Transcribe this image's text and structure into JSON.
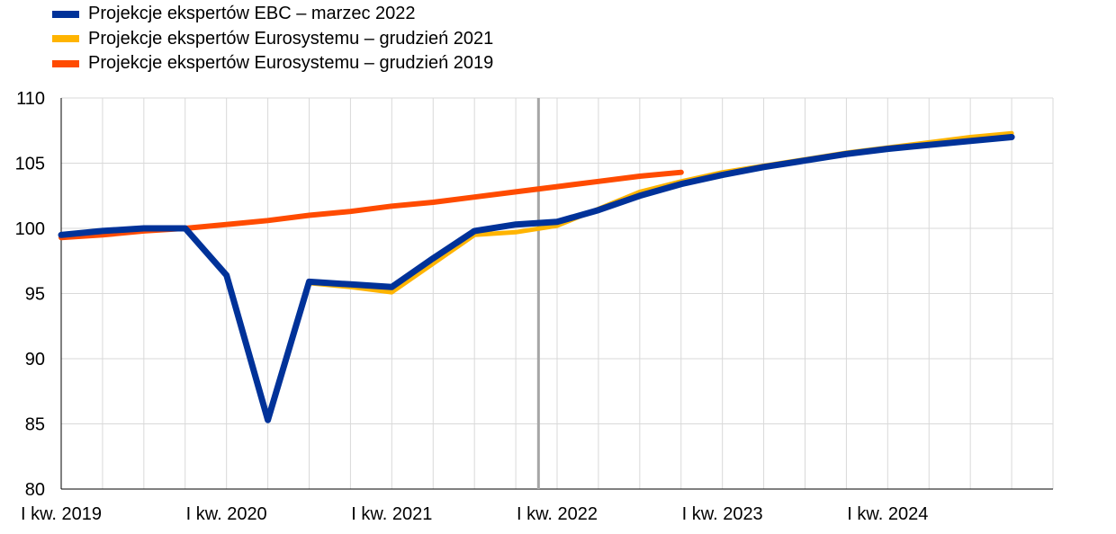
{
  "chart_data": {
    "type": "line",
    "title": "",
    "xlabel": "",
    "ylabel": "",
    "ylim": [
      80,
      110
    ],
    "yticks": [
      80,
      85,
      90,
      95,
      100,
      105,
      110
    ],
    "grid": true,
    "legend": "top-left",
    "x": [
      "2019Q1",
      "2019Q2",
      "2019Q3",
      "2019Q4",
      "2020Q1",
      "2020Q2",
      "2020Q3",
      "2020Q4",
      "2021Q1",
      "2021Q2",
      "2021Q3",
      "2021Q4",
      "2022Q1",
      "2022Q2",
      "2022Q3",
      "2022Q4",
      "2023Q1",
      "2023Q2",
      "2023Q3",
      "2023Q4",
      "2024Q1",
      "2024Q2",
      "2024Q3",
      "2024Q4"
    ],
    "xtick_labels": [
      {
        "x": "2019Q1",
        "label": "I kw. 2019"
      },
      {
        "x": "2020Q1",
        "label": "I kw. 2020"
      },
      {
        "x": "2021Q1",
        "label": "I kw. 2021"
      },
      {
        "x": "2022Q1",
        "label": "I kw. 2022"
      },
      {
        "x": "2023Q1",
        "label": "I kw. 2023"
      },
      {
        "x": "2024Q1",
        "label": "I kw. 2024"
      }
    ],
    "vertical_marker": {
      "between": [
        "2021Q4",
        "2022Q1"
      ],
      "color": "#a6a6a6"
    },
    "series": [
      {
        "name": "Projekcje ekspertów Eurosystemu – grudzień 2019",
        "color": "#ff4b00",
        "values": [
          99.3,
          99.5,
          99.8,
          100.0,
          100.3,
          100.6,
          101.0,
          101.3,
          101.7,
          102.0,
          102.4,
          102.8,
          103.2,
          103.6,
          104.0,
          104.3,
          null,
          null,
          null,
          null,
          null,
          null,
          null,
          null
        ]
      },
      {
        "name": "Projekcje ekspertów Eurosystemu – grudzień 2021",
        "color": "#ffb400",
        "values": [
          99.5,
          99.8,
          100.0,
          100.0,
          96.4,
          85.3,
          95.8,
          95.5,
          95.1,
          97.3,
          99.5,
          99.7,
          100.2,
          101.5,
          102.8,
          103.6,
          104.3,
          104.8,
          105.3,
          105.8,
          106.2,
          106.6,
          107.0,
          107.3
        ]
      },
      {
        "name": "Projekcje ekspertów EBC – marzec 2022",
        "color": "#003299",
        "values": [
          99.5,
          99.8,
          100.0,
          100.0,
          96.4,
          85.3,
          95.9,
          95.7,
          95.5,
          97.7,
          99.8,
          100.3,
          100.5,
          101.4,
          102.5,
          103.4,
          104.1,
          104.7,
          105.2,
          105.7,
          106.1,
          106.4,
          106.7,
          107.0
        ]
      }
    ]
  },
  "legend": {
    "items": [
      {
        "label": "Projekcje ekspertów EBC – marzec 2022",
        "color": "#003299"
      },
      {
        "label": "Projekcje ekspertów Eurosystemu – grudzień 2021",
        "color": "#ffb400"
      },
      {
        "label": "Projekcje ekspertów Eurosystemu – grudzień 2019",
        "color": "#ff4b00"
      }
    ]
  }
}
